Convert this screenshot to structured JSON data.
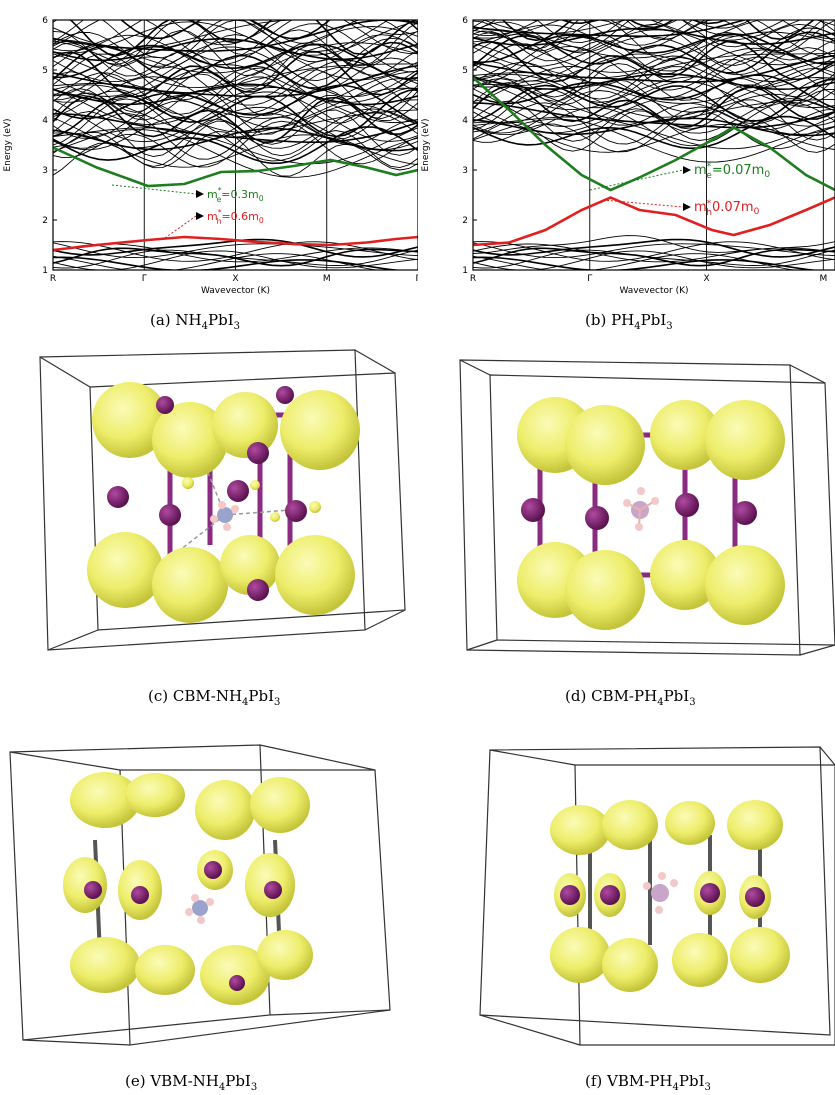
{
  "figure": {
    "captions": {
      "a": {
        "prefix": "(a) ",
        "formula": [
          "NH",
          "4",
          "PbI",
          "3"
        ]
      },
      "b": {
        "prefix": "(b) ",
        "formula": [
          "PH",
          "4",
          "PbI",
          "3"
        ]
      },
      "c": {
        "prefix": "(c) CBM-",
        "formula": [
          "NH",
          "4",
          "PbI",
          "3"
        ]
      },
      "d": {
        "prefix": "(d) CBM-",
        "formula": [
          "PH",
          "4",
          "PbI",
          "3"
        ]
      },
      "e": {
        "prefix": "(e) VBM-",
        "formula": [
          "NH",
          "4",
          "PbI",
          "3"
        ]
      },
      "f": {
        "prefix": "(f) VBM-",
        "formula": [
          "PH",
          "4",
          "PbI",
          "3"
        ]
      }
    }
  },
  "chart_data": [
    {
      "type": "line",
      "panel": "a",
      "ylabel": "Energy (eV)",
      "xlabel": "Wavevector (K)",
      "ylim": [
        1,
        6
      ],
      "yticks": [
        "1",
        "2",
        "3",
        "4",
        "5",
        "6"
      ],
      "kpoints": [
        "R",
        "Γ",
        "X",
        "M",
        "Γ"
      ],
      "colors": {
        "conduction": "#1e7d1e",
        "valence": "#e02020",
        "bands": "#000000"
      },
      "series": [
        {
          "role": "conduction",
          "x": [
            0,
            0.12,
            0.26,
            0.36,
            0.46,
            0.56,
            0.66,
            0.76,
            0.86,
            0.94,
            1.0
          ],
          "y": [
            3.45,
            3.05,
            2.68,
            2.72,
            2.96,
            2.98,
            3.08,
            3.2,
            3.05,
            2.9,
            3.0
          ]
        },
        {
          "role": "valence",
          "x": [
            0,
            0.12,
            0.26,
            0.36,
            0.46,
            0.56,
            0.66,
            0.76,
            0.86,
            0.94,
            1.0
          ],
          "y": [
            1.4,
            1.5,
            1.6,
            1.66,
            1.62,
            1.56,
            1.52,
            1.5,
            1.55,
            1.62,
            1.66
          ]
        }
      ],
      "annotations": [
        {
          "label": "m",
          "sup": "*",
          "sub": "e",
          "value": "=0.3m",
          "subv": "0",
          "color": "#1e7d1e"
        },
        {
          "label": "m",
          "sup": "*",
          "sub": "h",
          "value": "=0.6m",
          "subv": "0",
          "color": "#e02020"
        }
      ]
    },
    {
      "type": "line",
      "panel": "b",
      "ylabel": "Energy (eV)",
      "xlabel": "Wavevector (K)",
      "ylim": [
        1,
        6
      ],
      "yticks": [
        "1",
        "2",
        "3",
        "4",
        "5",
        "6"
      ],
      "kpoints": [
        "R",
        "Γ",
        "X",
        "M"
      ],
      "colors": {
        "conduction": "#1e7d1e",
        "valence": "#e02020",
        "bands": "#000000"
      },
      "series": [
        {
          "role": "conduction",
          "x": [
            0,
            0.1,
            0.2,
            0.3,
            0.38,
            0.46,
            0.56,
            0.66,
            0.72,
            0.82,
            0.92,
            1.0
          ],
          "y": [
            4.85,
            4.2,
            3.5,
            2.9,
            2.6,
            2.85,
            3.2,
            3.6,
            3.85,
            3.45,
            2.9,
            2.6
          ]
        },
        {
          "role": "valence",
          "x": [
            0,
            0.1,
            0.2,
            0.3,
            0.38,
            0.46,
            0.56,
            0.66,
            0.72,
            0.82,
            0.92,
            1.0
          ],
          "y": [
            1.5,
            1.55,
            1.8,
            2.2,
            2.45,
            2.2,
            2.1,
            1.8,
            1.7,
            1.9,
            2.2,
            2.45
          ]
        }
      ],
      "annotations": [
        {
          "label": "m",
          "sup": "*",
          "sub": "e",
          "value": "=0.07m",
          "subv": "0",
          "color": "#1e7d1e"
        },
        {
          "label": "m",
          "sup": "*",
          "sub": "h",
          "value": "0.07m",
          "subv": "0",
          "color": "#e02020"
        }
      ]
    }
  ]
}
